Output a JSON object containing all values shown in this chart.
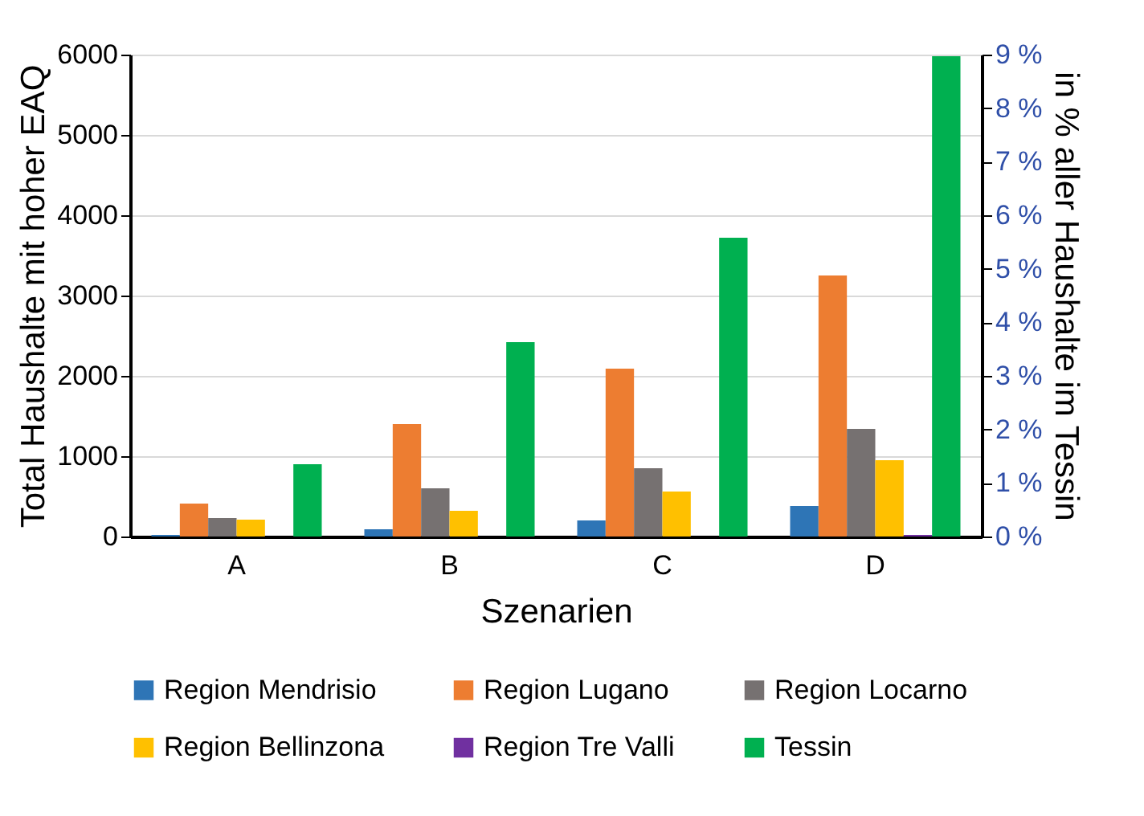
{
  "chart_data": {
    "type": "bar",
    "xlabel": "Szenarien",
    "ylabel": "Total Haushalte mit hoher EAQ",
    "y2label": "in % aller Haushalte im Tessin",
    "categories": [
      "A",
      "B",
      "C",
      "D"
    ],
    "series": [
      {
        "name": "Region Mendrisio",
        "color": "#2e75b6",
        "values": [
          20,
          90,
          200,
          380
        ]
      },
      {
        "name": "Region Lugano",
        "color": "#ed7d31",
        "values": [
          410,
          1400,
          2090,
          3250
        ]
      },
      {
        "name": "Region Locarno",
        "color": "#767171",
        "values": [
          230,
          600,
          850,
          1340
        ]
      },
      {
        "name": "Region Bellinzona",
        "color": "#ffc000",
        "values": [
          210,
          320,
          560,
          950
        ]
      },
      {
        "name": "Region Tre Valli",
        "color": "#7030a0",
        "values": [
          0,
          0,
          0,
          20
        ]
      },
      {
        "name": "Tessin",
        "color": "#00b050",
        "values": [
          900,
          2420,
          3720,
          5980
        ]
      }
    ],
    "ylim": [
      0,
      6000
    ],
    "yticks": [
      0,
      1000,
      2000,
      3000,
      4000,
      5000,
      6000
    ],
    "y2lim": [
      0,
      9
    ],
    "y2ticks": [
      {
        "value": 0,
        "label": "0 %"
      },
      {
        "value": 1,
        "label": "1 %"
      },
      {
        "value": 2,
        "label": "2 %"
      },
      {
        "value": 3,
        "label": "3 %"
      },
      {
        "value": 4,
        "label": "4 %"
      },
      {
        "value": 5,
        "label": "5 %"
      },
      {
        "value": 6,
        "label": "6 %"
      },
      {
        "value": 7,
        "label": "7 %"
      },
      {
        "value": 8,
        "label": "8 %"
      },
      {
        "value": 9,
        "label": "9 %"
      }
    ],
    "grid": "y",
    "legend": "bottom"
  }
}
